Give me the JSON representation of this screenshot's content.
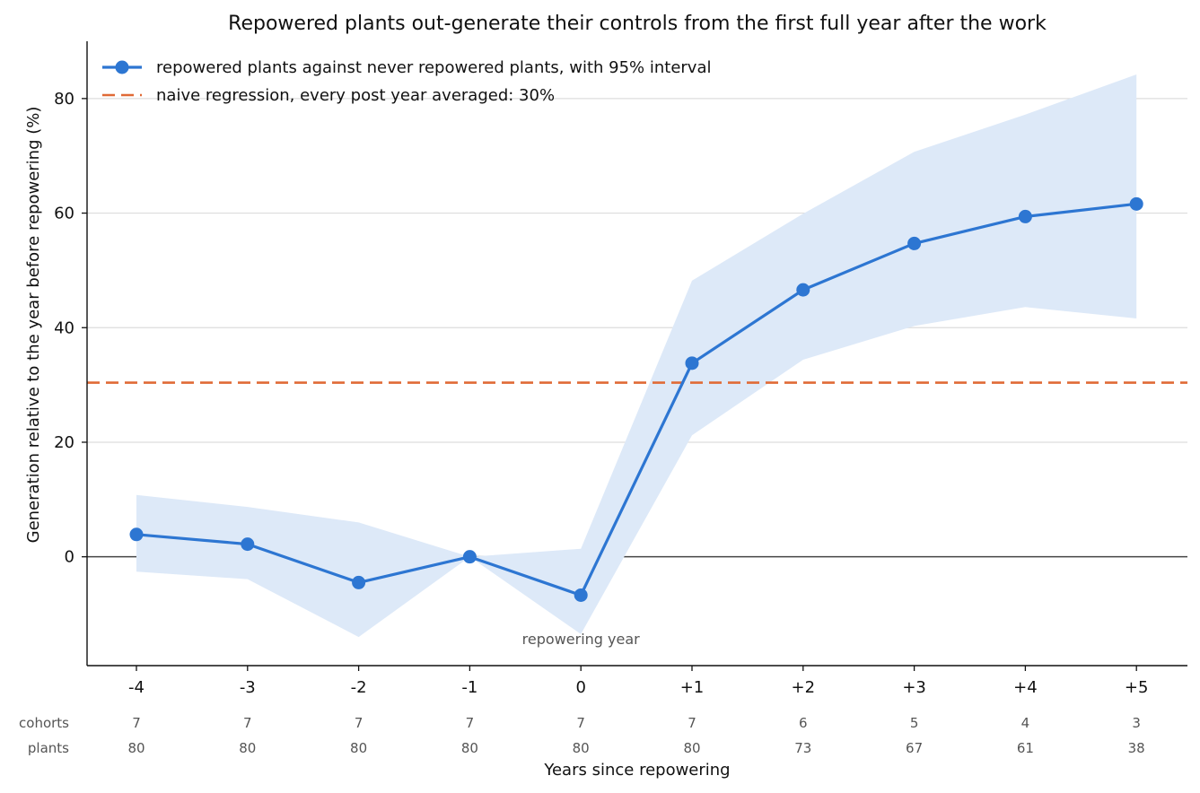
{
  "chart_data": {
    "type": "line",
    "title": "Repowered plants out-generate their controls from the first full year after the work",
    "xlabel": "Years since repowering",
    "ylabel": "Generation relative to the year before repowering (%)",
    "categories": [
      "-4",
      "-3",
      "-2",
      "-1",
      "0",
      "+1",
      "+2",
      "+3",
      "+4",
      "+5"
    ],
    "ylim": [
      -19,
      90
    ],
    "y_ticks": [
      "0",
      "20",
      "40",
      "60",
      "80"
    ],
    "grid": "horizontal",
    "legend_position": "top-left",
    "series": [
      {
        "name": "repowered plants against never repowered plants, with 95% interval",
        "values": [
          3.9,
          2.2,
          -4.5,
          0.0,
          -6.7,
          33.8,
          46.6,
          54.7,
          59.4,
          61.6
        ],
        "lower": [
          -2.6,
          -3.9,
          -14.0,
          0.0,
          -13.5,
          21.2,
          34.4,
          40.3,
          43.6,
          41.6
        ],
        "upper": [
          10.8,
          8.7,
          6.0,
          0.0,
          1.4,
          48.2,
          59.9,
          70.7,
          77.2,
          84.2
        ],
        "color": "#2d76d2",
        "band_color": "#dde9f8"
      }
    ],
    "reference_lines": [
      {
        "name": "naive regression, every post year averaged: 30%",
        "value": 30.4,
        "style": "dashed",
        "color": "#e06a36"
      }
    ],
    "zero_line": 0,
    "annotations": [
      {
        "text": "repowering year",
        "x": "0",
        "y": -14.3
      }
    ],
    "counts": {
      "rows": [
        {
          "label": "cohorts",
          "values": [
            "7",
            "7",
            "7",
            "7",
            "7",
            "7",
            "6",
            "5",
            "4",
            "3"
          ]
        },
        {
          "label": "plants",
          "values": [
            "80",
            "80",
            "80",
            "80",
            "80",
            "80",
            "73",
            "67",
            "61",
            "38"
          ]
        }
      ]
    }
  }
}
